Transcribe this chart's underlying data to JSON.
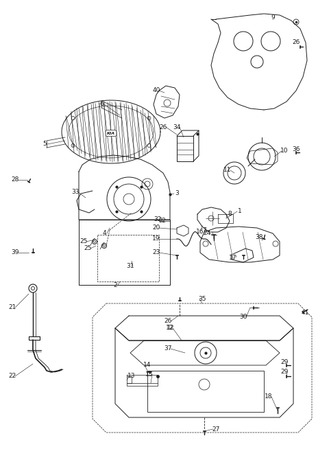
{
  "bg": "#ffffff",
  "lc": "#1a1a1a",
  "fig_w": 4.8,
  "fig_h": 6.54,
  "dpi": 100,
  "labels": [
    [
      "1",
      355,
      308
    ],
    [
      "2",
      175,
      415
    ],
    [
      "3",
      258,
      284
    ],
    [
      "4",
      158,
      340
    ],
    [
      "5",
      68,
      210
    ],
    [
      "6",
      148,
      152
    ],
    [
      "7",
      302,
      336
    ],
    [
      "8",
      322,
      318
    ],
    [
      "9",
      398,
      28
    ],
    [
      "10",
      348,
      228
    ],
    [
      "11",
      332,
      248
    ],
    [
      "12",
      248,
      480
    ],
    [
      "13",
      198,
      548
    ],
    [
      "14",
      218,
      535
    ],
    [
      "15",
      225,
      545
    ],
    [
      "16",
      298,
      340
    ],
    [
      "17",
      345,
      378
    ],
    [
      "18",
      395,
      580
    ],
    [
      "19",
      232,
      352
    ],
    [
      "20",
      232,
      338
    ],
    [
      "21",
      22,
      450
    ],
    [
      "22",
      22,
      548
    ],
    [
      "23",
      228,
      368
    ],
    [
      "24",
      305,
      342
    ],
    [
      "25",
      130,
      358
    ],
    [
      "25",
      142,
      365
    ],
    [
      "26",
      245,
      472
    ],
    [
      "26",
      238,
      188
    ],
    [
      "26",
      432,
      65
    ],
    [
      "27",
      318,
      622
    ],
    [
      "28",
      22,
      262
    ],
    [
      "29",
      415,
      525
    ],
    [
      "29",
      415,
      542
    ],
    [
      "30",
      358,
      465
    ],
    [
      "31",
      192,
      388
    ],
    [
      "32",
      230,
      322
    ],
    [
      "33",
      118,
      282
    ],
    [
      "34",
      258,
      188
    ],
    [
      "35",
      295,
      438
    ],
    [
      "36",
      432,
      218
    ],
    [
      "37",
      248,
      510
    ],
    [
      "38",
      382,
      348
    ],
    [
      "39",
      28,
      368
    ],
    [
      "40",
      238,
      135
    ],
    [
      "41",
      448,
      458
    ],
    [
      "40",
      238,
      135
    ]
  ]
}
